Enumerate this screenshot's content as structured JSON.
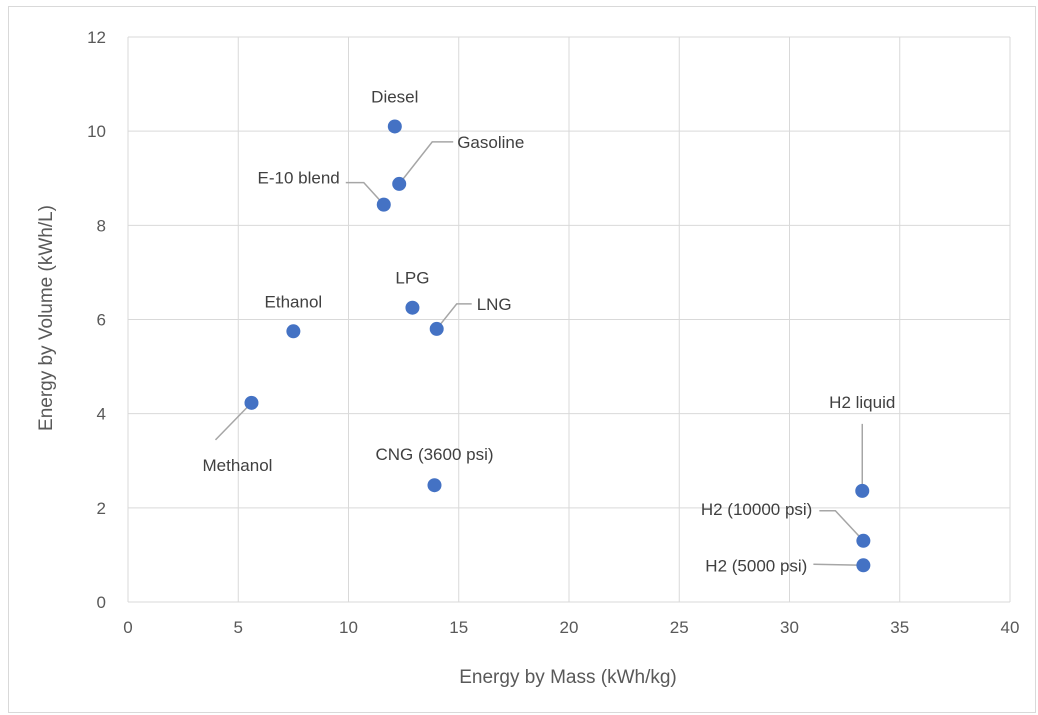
{
  "chart_data": {
    "type": "scatter",
    "title": "",
    "xlabel": "Energy by Mass (kWh/kg)",
    "ylabel": "Energy by Volume (kWh/L)",
    "xlim": [
      0,
      40
    ],
    "ylim": [
      0,
      12
    ],
    "x_ticks": [
      "0",
      "5",
      "10",
      "15",
      "20",
      "25",
      "30",
      "35",
      "40"
    ],
    "y_ticks": [
      "0",
      "2",
      "4",
      "6",
      "8",
      "10",
      "12"
    ],
    "grid": true,
    "marker_color": "#4472c4",
    "points": [
      {
        "label": "Diesel",
        "x": 12.1,
        "y": 10.1
      },
      {
        "label": "Gasoline",
        "x": 12.3,
        "y": 8.88
      },
      {
        "label": "E-10 blend",
        "x": 11.6,
        "y": 8.44
      },
      {
        "label": "LPG",
        "x": 12.9,
        "y": 6.25
      },
      {
        "label": "LNG",
        "x": 14.0,
        "y": 5.8
      },
      {
        "label": "Ethanol",
        "x": 7.5,
        "y": 5.75
      },
      {
        "label": "Methanol",
        "x": 5.6,
        "y": 4.23
      },
      {
        "label": "CNG (3600 psi)",
        "x": 13.9,
        "y": 2.48
      },
      {
        "label": "H2 liquid",
        "x": 33.3,
        "y": 2.36
      },
      {
        "label": "H2 (10000 psi)",
        "x": 33.35,
        "y": 1.3
      },
      {
        "label": "H2 (5000 psi)",
        "x": 33.35,
        "y": 0.78
      }
    ]
  }
}
